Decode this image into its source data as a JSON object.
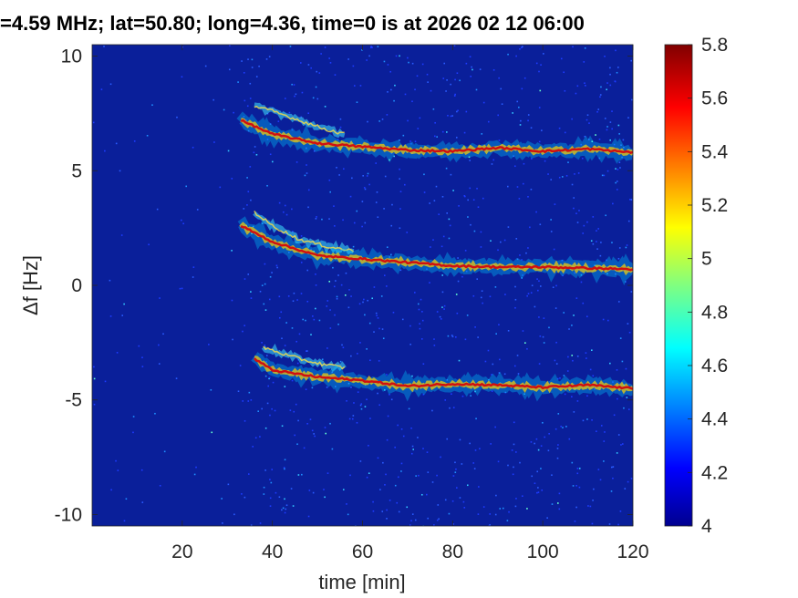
{
  "chart_data": {
    "type": "heatmap",
    "title": "=4.59 MHz;  lat=50.80; long=4.36, time=0 is at 2026 02 12 06:00",
    "xlabel": "time [min]",
    "ylabel": "Δf [Hz]",
    "xlim": [
      0,
      120
    ],
    "ylim": [
      -10.5,
      10.5
    ],
    "xticks": [
      20,
      40,
      60,
      80,
      100,
      120
    ],
    "yticks": [
      -10,
      -5,
      0,
      5,
      10
    ],
    "colorbar": {
      "range": [
        4,
        5.8
      ],
      "ticks": [
        4,
        4.2,
        4.4,
        4.6,
        4.8,
        5,
        5.2,
        5.4,
        5.6,
        5.8
      ],
      "colormap": "jet"
    },
    "grid": false,
    "background_color": "#0a1f9a",
    "traces": [
      {
        "name": "",
        "x": [
          33,
          40,
          50,
          60,
          70,
          80,
          90,
          100,
          110,
          120
        ],
        "y": [
          7.2,
          6.6,
          6.2,
          6.05,
          5.9,
          5.85,
          6.0,
          5.85,
          5.95,
          5.8
        ]
      },
      {
        "name": "",
        "x": [
          33,
          40,
          50,
          60,
          70,
          80,
          90,
          100,
          110,
          120
        ],
        "y": [
          2.6,
          1.9,
          1.3,
          1.15,
          1.0,
          0.85,
          0.8,
          0.8,
          0.75,
          0.7
        ]
      },
      {
        "name": "",
        "x": [
          36,
          40,
          50,
          60,
          70,
          80,
          90,
          100,
          110,
          120
        ],
        "y": [
          -3.2,
          -3.7,
          -4.0,
          -4.15,
          -4.4,
          -4.3,
          -4.35,
          -4.45,
          -4.35,
          -4.5
        ]
      }
    ],
    "secondary_traces": [
      {
        "x": [
          36,
          40,
          46,
          52,
          56
        ],
        "y": [
          7.8,
          7.6,
          7.2,
          6.8,
          6.6
        ]
      },
      {
        "x": [
          36,
          40,
          46,
          52,
          58
        ],
        "y": [
          3.2,
          2.6,
          2.0,
          1.7,
          1.5
        ]
      },
      {
        "x": [
          38,
          44,
          50,
          56
        ],
        "y": [
          -2.7,
          -3.1,
          -3.4,
          -3.6
        ]
      }
    ]
  }
}
